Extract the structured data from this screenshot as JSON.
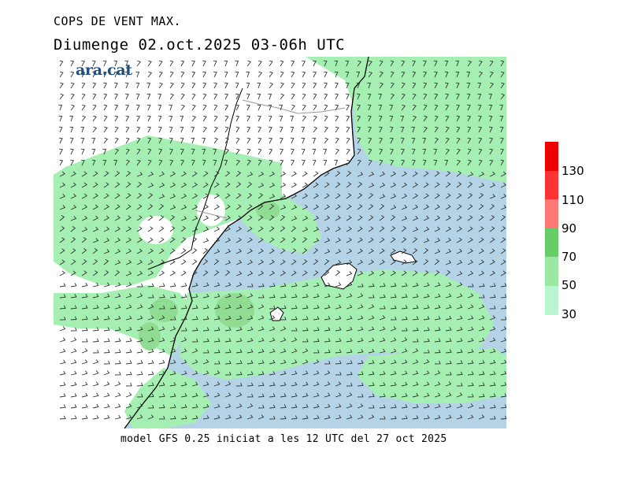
{
  "header": {
    "title": "COPS DE VENT MAX.",
    "subtitle": "Diumenge  02.oct.2025 03-06h UTC"
  },
  "logo_text": "ara.cat",
  "footer": "model GFS 0.25 iniciat a les 12 UTC del 27 oct 2025",
  "legend": {
    "labels": [
      "30",
      "50",
      "70",
      "90",
      "110",
      "130"
    ],
    "colors": [
      "#b9f5d0",
      "#9ae8a4",
      "#66cc66",
      "#ff7777",
      "#ff3333",
      "#ee0000"
    ]
  },
  "map": {
    "land_color": "#ffffff",
    "sea_color": "#b5d3e7",
    "wind_zone_30_50_color": "#a5efb2",
    "wind_zone_50_70_color": "#8fdc92"
  }
}
